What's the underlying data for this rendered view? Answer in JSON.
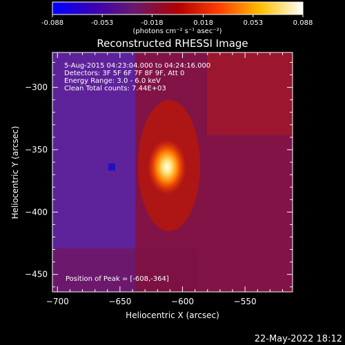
{
  "colorbar": {
    "ticks": [
      "-0.088",
      "-0.053",
      "-0.018",
      "0.018",
      "0.053",
      "0.088"
    ],
    "tick_values": [
      -0.088,
      -0.053,
      -0.018,
      0.018,
      0.053,
      0.088
    ],
    "range": [
      -0.088,
      0.088
    ],
    "unit_label": "(photons cm⁻² s⁻¹ asec⁻²)",
    "colormap": [
      "#0000ff",
      "#3c00b4",
      "#6a1a6a",
      "#b00000",
      "#ff4000",
      "#ffc000",
      "#ffffff"
    ]
  },
  "plot": {
    "title": "Reconstructed RHESSI Image",
    "info_lines": [
      "5-Aug-2015 04:23:04.000 to 04:24:16.000",
      "Detectors: 3F 5F 6F 7F 8F 9F, Att 0",
      "Energy Range: 3.0 - 6.0 keV",
      "Clean    Total counts: 7.44E+03"
    ],
    "peak_label": "Position of Peak = [-608,-364]"
  },
  "chart_data": {
    "type": "heatmap",
    "title": "Reconstructed RHESSI Image",
    "xlabel": "Heliocentric X (arcsec)",
    "ylabel": "Heliocentric Y (arcsec)",
    "xlim": [
      -704,
      -512
    ],
    "ylim": [
      -464,
      -272
    ],
    "xticks": [
      -700,
      -650,
      -600,
      -550
    ],
    "yticks": [
      -300,
      -350,
      -400,
      -450
    ],
    "xtick_labels": [
      "−700",
      "−650",
      "−600",
      "−550"
    ],
    "ytick_labels": [
      "−300",
      "−350",
      "−400",
      "−450"
    ],
    "peak_position": [
      -608,
      -364
    ],
    "value_range": [
      -0.088,
      0.088
    ]
  },
  "footer": {
    "date": "22-May-2022 18:12"
  }
}
